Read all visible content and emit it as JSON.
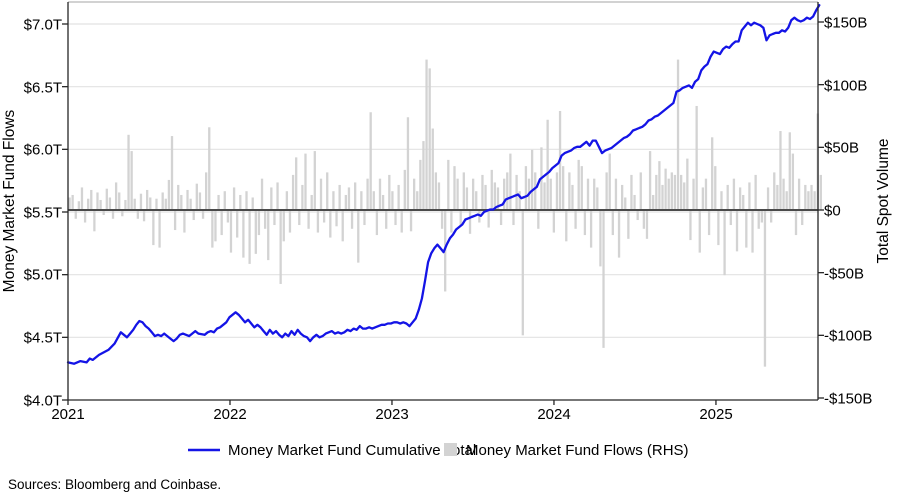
{
  "figure": {
    "left_axis": {
      "title": "Money Market Fund Flows",
      "ticks": [
        "$7.0T",
        "$6.5T",
        "$6.0T",
        "$5.5T",
        "$5.0T",
        "$4.5T",
        "$4.0T"
      ]
    },
    "right_axis": {
      "title": "Total Spot Volume",
      "ticks": [
        "$150B",
        "$100B",
        "$50B",
        "$0",
        "-$50B",
        "-$100B",
        "-$150B"
      ]
    },
    "x_axis": {
      "ticks": [
        "2021",
        "2022",
        "2023",
        "2024",
        "2025"
      ]
    },
    "legend": {
      "line_label": "Money Market Fund Cumulative Total",
      "bar_label": "Money Market Fund Flows (RHS)"
    },
    "sources": "Sources: Bloomberg and Coinbase."
  },
  "chart_data": {
    "type": "combo",
    "x_unit": "weeks since 2021-01-01",
    "x_domain_years": [
      2021.0,
      2025.63
    ],
    "x_tick_years": [
      2021,
      2022,
      2023,
      2024,
      2025
    ],
    "grid": true,
    "legend_position": "bottom-center",
    "colors": {
      "line": "#1414e6",
      "bar": "#d3d3d3",
      "zero_line": "#4a4a4a",
      "gridline": "#e2e2e2"
    },
    "left_axis": {
      "label": "Money Market Fund Flows",
      "unit": "$T",
      "range": [
        4.0,
        7.19
      ],
      "tick_values": [
        7.0,
        6.5,
        6.0,
        5.5,
        5.0,
        4.5,
        4.0
      ]
    },
    "right_axis": {
      "label": "Total Spot Volume",
      "unit": "$B",
      "range": [
        -150,
        165
      ],
      "tick_values": [
        150,
        100,
        50,
        0,
        -50,
        -100,
        -150
      ]
    },
    "series": [
      {
        "name": "Money Market Fund Flows (RHS)",
        "type": "bar",
        "axis": "right",
        "unit": "$B",
        "weekly_values": [
          10,
          12,
          -7,
          7,
          18,
          -10,
          9,
          16,
          -17,
          14,
          8,
          -4,
          17,
          10,
          -7,
          22,
          14,
          -5,
          8,
          60,
          47,
          9,
          -7,
          13,
          -9,
          16,
          10,
          -28,
          9,
          -30,
          14,
          9,
          24,
          59,
          -16,
          20,
          12,
          -18,
          16,
          9,
          -8,
          21,
          14,
          -7,
          30,
          66,
          -30,
          -25,
          12,
          -20,
          15,
          -10,
          -34,
          18,
          -22,
          12,
          -38,
          15,
          -43,
          10,
          -35,
          -20,
          25,
          -15,
          -40,
          18,
          -12,
          22,
          -59,
          -25,
          15,
          -18,
          28,
          42,
          -12,
          20,
          45,
          -15,
          12,
          47,
          -18,
          25,
          -10,
          30,
          -22,
          15,
          -13,
          20,
          -25,
          12,
          18,
          -15,
          22,
          -42,
          15,
          -12,
          25,
          78,
          15,
          -20,
          25,
          12,
          -15,
          28,
          15,
          -12,
          20,
          -18,
          32,
          74,
          -17,
          25,
          15,
          40,
          55,
          120,
          113,
          65,
          30,
          22,
          -15,
          -65,
          40,
          -18,
          35,
          25,
          -12,
          30,
          18,
          -19,
          25,
          15,
          -10,
          28,
          20,
          -14,
          32,
          22,
          18,
          -12,
          25,
          30,
          45,
          -12,
          28,
          15,
          -100,
          35,
          25,
          48,
          30,
          -15,
          50,
          22,
          72,
          25,
          -18,
          30,
          79,
          35,
          -25,
          30,
          20,
          -15,
          40,
          35,
          -20,
          25,
          -30,
          25,
          18,
          -45,
          -110,
          30,
          45,
          -20,
          25,
          -38,
          20,
          10,
          -23,
          28,
          12,
          -8,
          30,
          -15,
          -23,
          47,
          12,
          28,
          39,
          20,
          33,
          25,
          30,
          28,
          120,
          28,
          22,
          41,
          -24,
          25,
          83,
          -34,
          18,
          25,
          -20,
          58,
          35,
          -28,
          15,
          -52,
          20,
          -12,
          25,
          -33,
          18,
          12,
          -30,
          22,
          -34,
          28,
          -15,
          -10,
          -125,
          18,
          -10,
          30,
          20,
          63,
          25,
          15,
          62,
          45,
          -20,
          25,
          -12,
          20,
          15,
          20,
          15,
          77,
          28
        ]
      },
      {
        "name": "Money Market Fund Cumulative Total",
        "type": "line",
        "axis": "left",
        "unit": "$T",
        "points_week_value": [
          [
            0,
            4.3
          ],
          [
            2,
            4.29
          ],
          [
            4,
            4.31
          ],
          [
            6,
            4.3
          ],
          [
            7,
            4.33
          ],
          [
            8,
            4.32
          ],
          [
            10,
            4.36
          ],
          [
            13,
            4.4
          ],
          [
            15,
            4.45
          ],
          [
            17,
            4.54
          ],
          [
            18,
            4.52
          ],
          [
            19,
            4.5
          ],
          [
            20,
            4.53
          ],
          [
            21,
            4.56
          ],
          [
            22,
            4.6
          ],
          [
            23,
            4.63
          ],
          [
            24,
            4.62
          ],
          [
            25,
            4.59
          ],
          [
            26,
            4.57
          ],
          [
            27,
            4.54
          ],
          [
            28,
            4.51
          ],
          [
            29,
            4.52
          ],
          [
            30,
            4.51
          ],
          [
            31,
            4.53
          ],
          [
            32,
            4.51
          ],
          [
            33,
            4.49
          ],
          [
            34,
            4.47
          ],
          [
            35,
            4.49
          ],
          [
            36,
            4.52
          ],
          [
            37,
            4.53
          ],
          [
            38,
            4.52
          ],
          [
            39,
            4.51
          ],
          [
            41,
            4.55
          ],
          [
            42,
            4.53
          ],
          [
            44,
            4.52
          ],
          [
            45,
            4.54
          ],
          [
            46,
            4.55
          ],
          [
            47,
            4.54
          ],
          [
            48,
            4.57
          ],
          [
            49,
            4.58
          ],
          [
            50,
            4.6
          ],
          [
            51,
            4.62
          ],
          [
            52,
            4.66
          ],
          [
            53,
            4.68
          ],
          [
            54,
            4.7
          ],
          [
            55,
            4.68
          ],
          [
            56,
            4.65
          ],
          [
            57,
            4.62
          ],
          [
            58,
            4.64
          ],
          [
            59,
            4.61
          ],
          [
            60,
            4.58
          ],
          [
            61,
            4.6
          ],
          [
            62,
            4.58
          ],
          [
            63,
            4.55
          ],
          [
            64,
            4.52
          ],
          [
            65,
            4.56
          ],
          [
            66,
            4.53
          ],
          [
            67,
            4.55
          ],
          [
            68,
            4.52
          ],
          [
            69,
            4.5
          ],
          [
            70,
            4.53
          ],
          [
            71,
            4.51
          ],
          [
            72,
            4.55
          ],
          [
            73,
            4.52
          ],
          [
            74,
            4.56
          ],
          [
            75,
            4.53
          ],
          [
            76,
            4.51
          ],
          [
            77,
            4.5
          ],
          [
            78,
            4.47
          ],
          [
            79,
            4.5
          ],
          [
            80,
            4.52
          ],
          [
            81,
            4.5
          ],
          [
            82,
            4.51
          ],
          [
            83,
            4.53
          ],
          [
            84,
            4.54
          ],
          [
            85,
            4.55
          ],
          [
            86,
            4.53
          ],
          [
            87,
            4.54
          ],
          [
            88,
            4.53
          ],
          [
            89,
            4.54
          ],
          [
            90,
            4.56
          ],
          [
            91,
            4.55
          ],
          [
            92,
            4.57
          ],
          [
            93,
            4.56
          ],
          [
            94,
            4.59
          ],
          [
            95,
            4.57
          ],
          [
            96,
            4.57
          ],
          [
            97,
            4.58
          ],
          [
            98,
            4.57
          ],
          [
            99,
            4.58
          ],
          [
            100,
            4.59
          ],
          [
            101,
            4.6
          ],
          [
            102,
            4.6
          ],
          [
            103,
            4.61
          ],
          [
            104,
            4.61
          ],
          [
            105,
            4.62
          ],
          [
            106,
            4.62
          ],
          [
            107,
            4.61
          ],
          [
            108,
            4.62
          ],
          [
            109,
            4.61
          ],
          [
            110,
            4.59
          ],
          [
            111,
            4.62
          ],
          [
            112,
            4.65
          ],
          [
            113,
            4.72
          ],
          [
            114,
            4.81
          ],
          [
            115,
            4.95
          ],
          [
            116,
            5.1
          ],
          [
            117,
            5.17
          ],
          [
            118,
            5.21
          ],
          [
            119,
            5.24
          ],
          [
            120,
            5.21
          ],
          [
            121,
            5.18
          ],
          [
            122,
            5.24
          ],
          [
            123,
            5.29
          ],
          [
            124,
            5.32
          ],
          [
            125,
            5.36
          ],
          [
            126,
            5.38
          ],
          [
            127,
            5.4
          ],
          [
            128,
            5.44
          ],
          [
            129,
            5.45
          ],
          [
            130,
            5.46
          ],
          [
            131,
            5.47
          ],
          [
            132,
            5.48
          ],
          [
            133,
            5.47
          ],
          [
            134,
            5.5
          ],
          [
            135,
            5.51
          ],
          [
            136,
            5.52
          ],
          [
            137,
            5.52
          ],
          [
            138,
            5.54
          ],
          [
            139,
            5.55
          ],
          [
            140,
            5.56
          ],
          [
            141,
            5.6
          ],
          [
            142,
            5.61
          ],
          [
            143,
            5.62
          ],
          [
            144,
            5.63
          ],
          [
            145,
            5.64
          ],
          [
            146,
            5.61
          ],
          [
            147,
            5.62
          ],
          [
            148,
            5.63
          ],
          [
            149,
            5.66
          ],
          [
            150,
            5.68
          ],
          [
            151,
            5.7
          ],
          [
            152,
            5.76
          ],
          [
            153,
            5.78
          ],
          [
            154,
            5.8
          ],
          [
            155,
            5.82
          ],
          [
            156,
            5.85
          ],
          [
            157,
            5.87
          ],
          [
            158,
            5.89
          ],
          [
            159,
            5.95
          ],
          [
            160,
            5.97
          ],
          [
            161,
            5.98
          ],
          [
            162,
            5.99
          ],
          [
            163,
            6.01
          ],
          [
            164,
            6.02
          ],
          [
            165,
            6.02
          ],
          [
            166,
            6.04
          ],
          [
            167,
            6.06
          ],
          [
            168,
            6.03
          ],
          [
            169,
            6.07
          ],
          [
            170,
            6.07
          ],
          [
            171,
            6.02
          ],
          [
            172,
            5.97
          ],
          [
            173,
            5.99
          ],
          [
            174,
            6.0
          ],
          [
            175,
            6.01
          ],
          [
            176,
            6.03
          ],
          [
            177,
            6.05
          ],
          [
            178,
            6.07
          ],
          [
            179,
            6.09
          ],
          [
            180,
            6.1
          ],
          [
            181,
            6.12
          ],
          [
            182,
            6.15
          ],
          [
            183,
            6.16
          ],
          [
            184,
            6.17
          ],
          [
            185,
            6.18
          ],
          [
            186,
            6.2
          ],
          [
            187,
            6.23
          ],
          [
            188,
            6.24
          ],
          [
            189,
            6.26
          ],
          [
            190,
            6.27
          ],
          [
            191,
            6.29
          ],
          [
            192,
            6.31
          ],
          [
            193,
            6.33
          ],
          [
            194,
            6.35
          ],
          [
            195,
            6.37
          ],
          [
            196,
            6.46
          ],
          [
            197,
            6.47
          ],
          [
            198,
            6.49
          ],
          [
            199,
            6.5
          ],
          [
            200,
            6.51
          ],
          [
            201,
            6.49
          ],
          [
            202,
            6.54
          ],
          [
            203,
            6.56
          ],
          [
            204,
            6.63
          ],
          [
            205,
            6.66
          ],
          [
            206,
            6.68
          ],
          [
            207,
            6.74
          ],
          [
            208,
            6.78
          ],
          [
            209,
            6.77
          ],
          [
            210,
            6.76
          ],
          [
            211,
            6.8
          ],
          [
            212,
            6.82
          ],
          [
            213,
            6.81
          ],
          [
            214,
            6.84
          ],
          [
            215,
            6.86
          ],
          [
            216,
            6.86
          ],
          [
            217,
            6.95
          ],
          [
            218,
            6.98
          ],
          [
            219,
            7.01
          ],
          [
            220,
            6.99
          ],
          [
            221,
            7.01
          ],
          [
            222,
            7.0
          ],
          [
            223,
            6.99
          ],
          [
            224,
            6.97
          ],
          [
            225,
            6.87
          ],
          [
            226,
            6.91
          ],
          [
            227,
            6.92
          ],
          [
            228,
            6.93
          ],
          [
            229,
            6.93
          ],
          [
            230,
            6.95
          ],
          [
            231,
            6.94
          ],
          [
            232,
            6.97
          ],
          [
            233,
            7.03
          ],
          [
            234,
            7.05
          ],
          [
            235,
            7.03
          ],
          [
            236,
            7.02
          ],
          [
            237,
            7.03
          ],
          [
            238,
            7.05
          ],
          [
            239,
            7.04
          ],
          [
            240,
            7.06
          ],
          [
            241,
            7.11
          ],
          [
            242,
            7.15
          ]
        ]
      }
    ]
  }
}
